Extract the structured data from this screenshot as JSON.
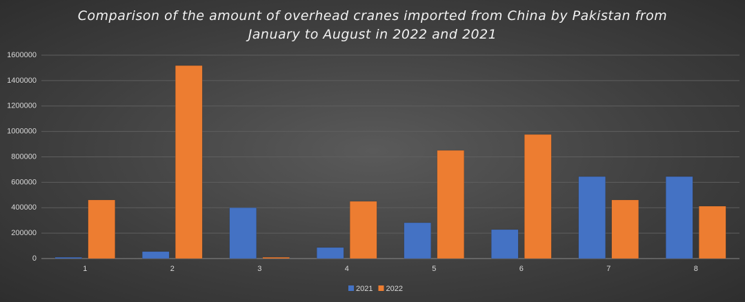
{
  "chart_data": {
    "type": "bar",
    "title": "Comparison of the amount of overhead cranes imported from China by Pakistan from January to August in 2022 and 2021",
    "categories": [
      "1",
      "2",
      "3",
      "4",
      "5",
      "6",
      "7",
      "8"
    ],
    "series": [
      {
        "name": "2021",
        "color": "#4472c4",
        "values": [
          10000,
          55000,
          400000,
          87000,
          282000,
          228000,
          645000,
          645000
        ]
      },
      {
        "name": "2022",
        "color": "#ed7d31",
        "values": [
          461000,
          1518000,
          10000,
          450000,
          851000,
          976000,
          461000,
          412000
        ]
      }
    ],
    "ylim": [
      0,
      1600000
    ],
    "yticks": [
      0,
      200000,
      400000,
      600000,
      800000,
      1000000,
      1200000,
      1400000,
      1600000
    ],
    "grid": true,
    "legend": "bottom"
  }
}
